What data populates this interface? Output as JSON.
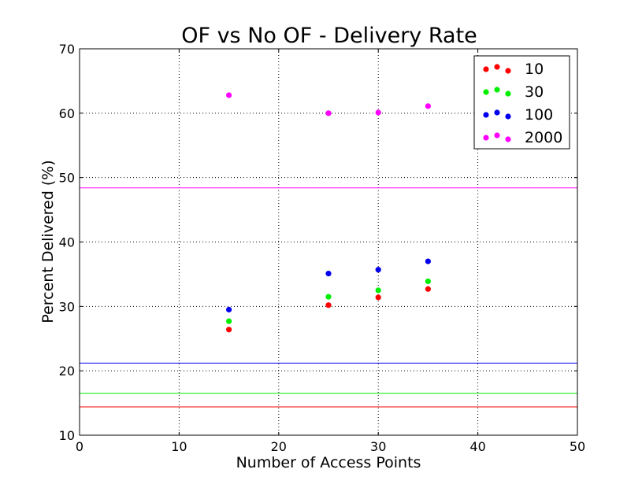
{
  "chart_data": {
    "type": "scatter",
    "title": "OF vs No OF - Delivery Rate",
    "xlabel": "Number of Access Points",
    "ylabel": "Percent Delivered (%)",
    "xlim": [
      0,
      50
    ],
    "ylim": [
      10,
      70
    ],
    "x_ticks": [
      "0",
      "10",
      "20",
      "30",
      "40",
      "50"
    ],
    "y_ticks": [
      "10",
      "20",
      "30",
      "40",
      "50",
      "60",
      "70"
    ],
    "grid": true,
    "legend_position": "top-right",
    "series": [
      {
        "name": "10",
        "color": "#ff0000",
        "x": [
          15,
          25,
          30,
          35
        ],
        "y": [
          26.4,
          30.2,
          31.4,
          32.7
        ],
        "baseline": 14.4
      },
      {
        "name": "30",
        "color": "#00ee00",
        "x": [
          15,
          25,
          30,
          35
        ],
        "y": [
          27.7,
          31.5,
          32.5,
          33.9
        ],
        "baseline": 16.5
      },
      {
        "name": "100",
        "color": "#0000ee",
        "x": [
          15,
          25,
          30,
          35
        ],
        "y": [
          29.5,
          35.1,
          35.7,
          37.0
        ],
        "baseline": 21.2
      },
      {
        "name": "2000",
        "color": "#ff00ff",
        "x": [
          15,
          25,
          30,
          35
        ],
        "y": [
          62.8,
          60.0,
          60.1,
          61.1
        ],
        "baseline": 48.4
      }
    ]
  }
}
